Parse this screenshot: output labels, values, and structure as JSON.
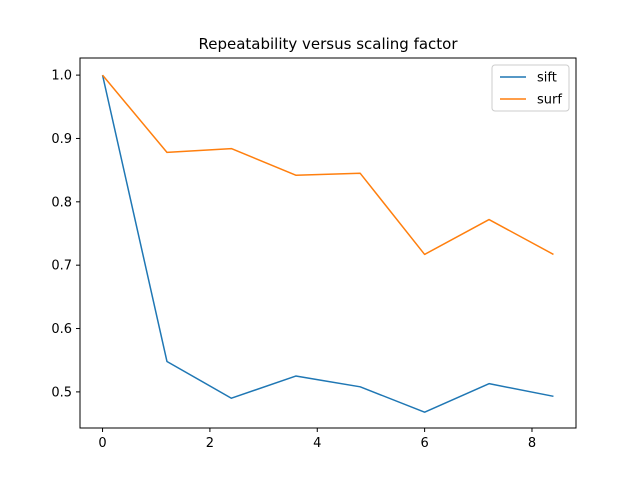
{
  "chart_data": {
    "type": "line",
    "title": "Repeatability versus scaling factor",
    "xlabel": "",
    "ylabel": "",
    "xlim": [
      -0.42,
      8.82
    ],
    "ylim": [
      0.443,
      1.027
    ],
    "x_ticks": [
      0,
      2,
      4,
      6,
      8
    ],
    "y_ticks": [
      0.5,
      0.6,
      0.7,
      0.8,
      0.9,
      1.0
    ],
    "x_tick_labels": [
      "0",
      "2",
      "4",
      "6",
      "8"
    ],
    "y_tick_labels": [
      "0.5",
      "0.6",
      "0.7",
      "0.8",
      "0.9",
      "1.0"
    ],
    "grid": false,
    "legend_position": "top-right",
    "x": [
      0,
      1.2,
      2.4,
      3.6,
      4.8,
      6.0,
      7.2,
      8.4
    ],
    "series": [
      {
        "name": "sift",
        "color": "#1f77b4",
        "values": [
          1.0,
          0.548,
          0.49,
          0.525,
          0.508,
          0.468,
          0.513,
          0.493
        ]
      },
      {
        "name": "surf",
        "color": "#ff7f0e",
        "values": [
          1.0,
          0.878,
          0.884,
          0.842,
          0.845,
          0.717,
          0.772,
          0.717
        ]
      }
    ]
  }
}
